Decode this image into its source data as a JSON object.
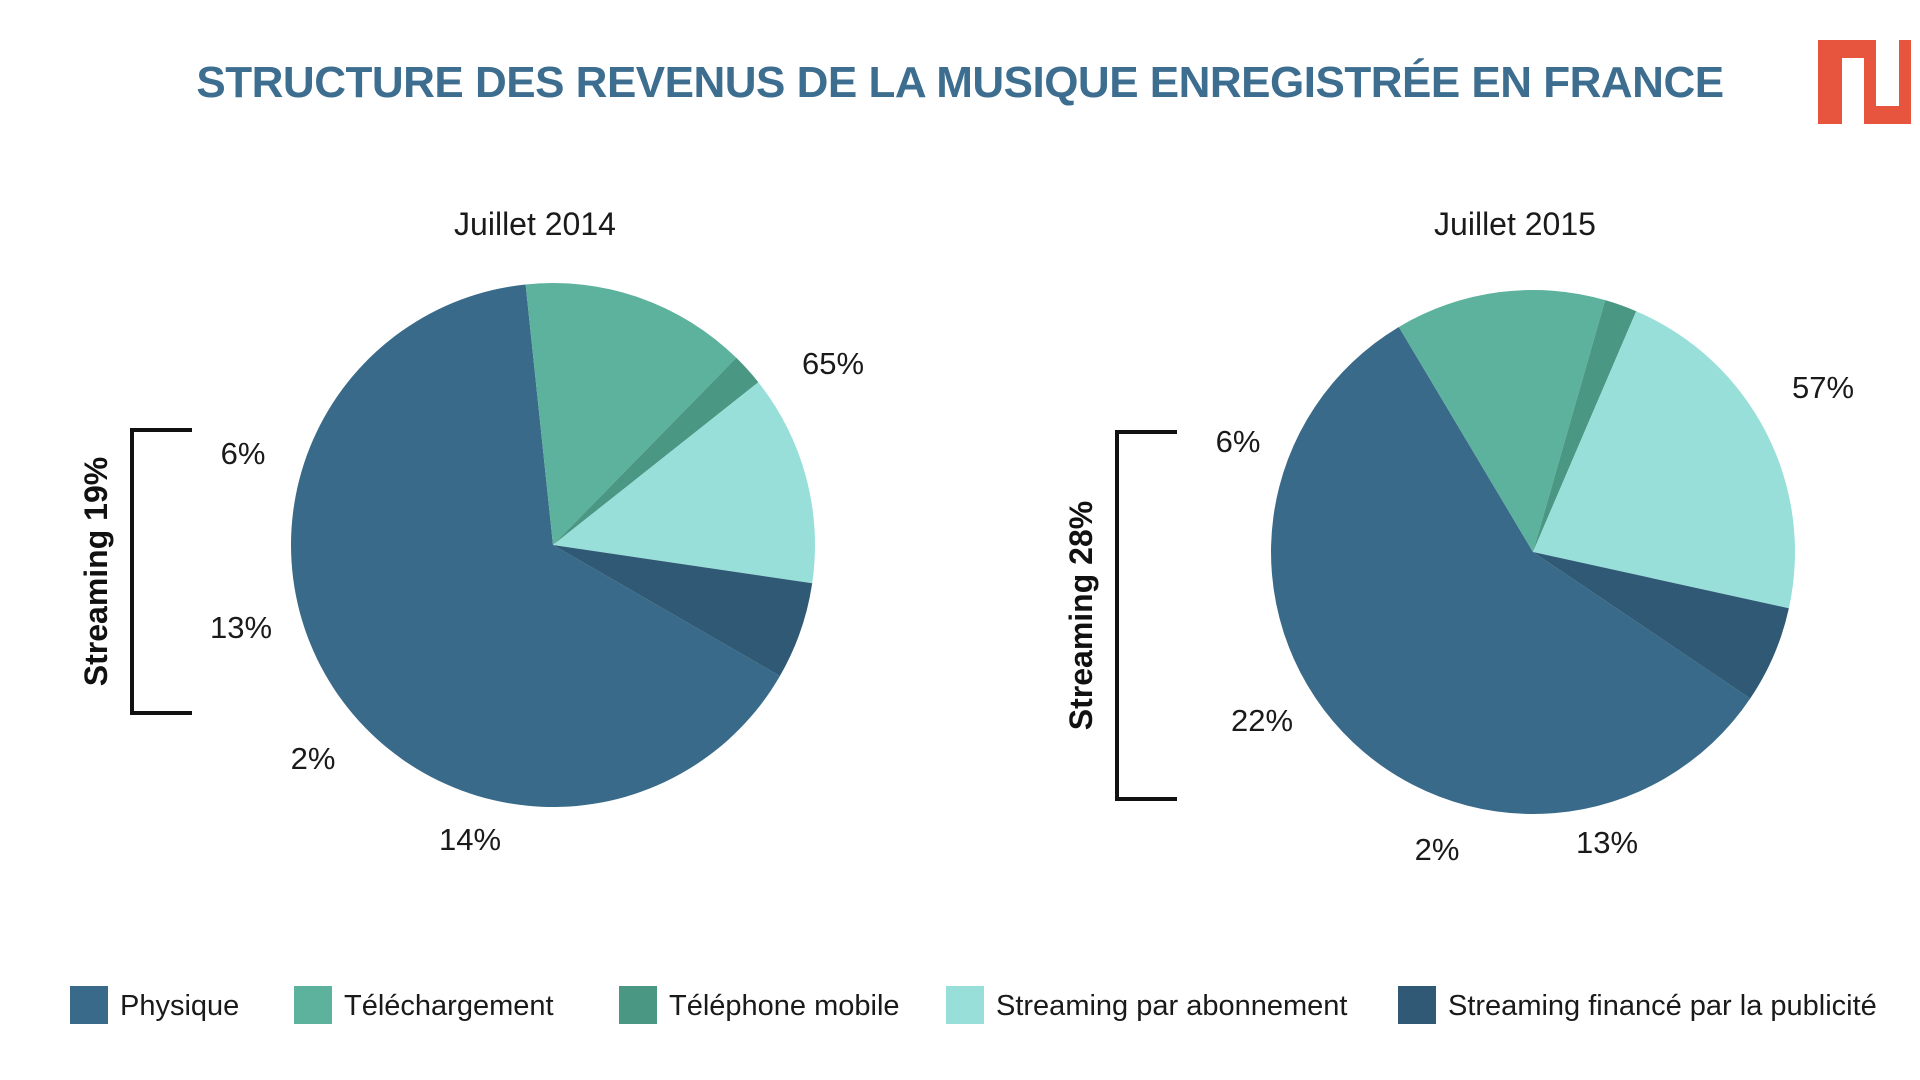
{
  "title": "STRUCTURE DES REVENUS DE LA MUSIQUE ENREGISTRÉE EN FRANCE",
  "colors": {
    "title": "#3d6e8f",
    "logo": "#e8553f",
    "Physique": "#396a89",
    "Téléchargement": "#5db29e",
    "Téléphone mobile": "#4a9783",
    "Streaming par abonnement": "#98dfda",
    "Streaming financé par la publicité": "#2f5974"
  },
  "chart_data": [
    {
      "type": "pie",
      "title": "Juillet 2014",
      "start_angle_deg": 120,
      "slices": [
        {
          "label": "Physique",
          "value": 65,
          "display": "65%"
        },
        {
          "label": "Téléchargement",
          "value": 14,
          "display": "14%"
        },
        {
          "label": "Téléphone mobile",
          "value": 2,
          "display": "2%"
        },
        {
          "label": "Streaming par abonnement",
          "value": 13,
          "display": "13%"
        },
        {
          "label": "Streaming financé par la publicité",
          "value": 6,
          "display": "6%"
        }
      ],
      "bracket_label": "Streaming 19%"
    },
    {
      "type": "pie",
      "title": "Juillet 2015",
      "start_angle_deg": 124,
      "slices": [
        {
          "label": "Physique",
          "value": 57,
          "display": "57%"
        },
        {
          "label": "Téléchargement",
          "value": 13,
          "display": "13%"
        },
        {
          "label": "Téléphone mobile",
          "value": 2,
          "display": "2%"
        },
        {
          "label": "Streaming par abonnement",
          "value": 22,
          "display": "22%"
        },
        {
          "label": "Streaming financé par la publicité",
          "value": 6,
          "display": "6%"
        }
      ],
      "bracket_label": "Streaming 28%"
    }
  ],
  "legend": [
    "Physique",
    "Téléchargement",
    "Téléphone mobile",
    "Streaming par abonnement",
    "Streaming financé par la publicité"
  ]
}
